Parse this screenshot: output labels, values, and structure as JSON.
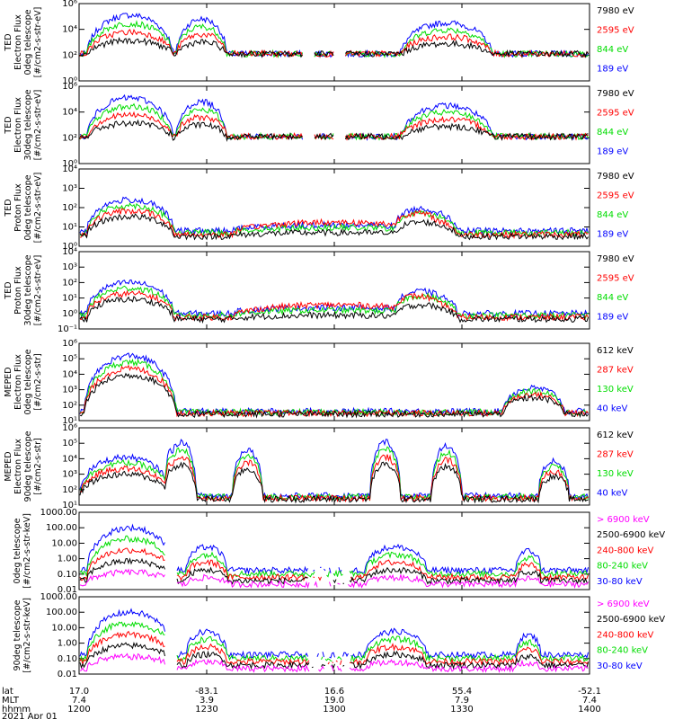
{
  "chart_data": [
    {
      "type": "line",
      "ylabel": [
        "TED",
        "Electron Flux",
        "0deg telescope",
        "[#/cm2-s-str-eV]"
      ],
      "y_ticks": [
        "10⁰",
        "10²",
        "10⁴",
        "10⁶"
      ],
      "ylim_log": [
        0,
        6
      ],
      "legend": [
        {
          "text": "7980 eV",
          "color": "#000000"
        },
        {
          "text": "2595 eV",
          "color": "#ff0000"
        },
        {
          "text": "844 eV",
          "color": "#00dd00"
        },
        {
          "text": "189 eV",
          "color": "#0000ff"
        }
      ],
      "profile": "ted_e0"
    },
    {
      "type": "line",
      "ylabel": [
        "TED",
        "Electron Flux",
        "30deg telescope",
        "[#/cm2-s-str-eV]"
      ],
      "y_ticks": [
        "10⁰",
        "10²",
        "10⁴",
        "10⁶"
      ],
      "ylim_log": [
        0,
        6
      ],
      "legend": [
        {
          "text": "7980 eV",
          "color": "#000000"
        },
        {
          "text": "2595 eV",
          "color": "#ff0000"
        },
        {
          "text": "844 eV",
          "color": "#00dd00"
        },
        {
          "text": "189 eV",
          "color": "#0000ff"
        }
      ],
      "profile": "ted_e30"
    },
    {
      "type": "line",
      "ylabel": [
        "TED",
        "Proton Flux",
        "0deg telescope",
        "[#/cm2-s-str-eV]"
      ],
      "y_ticks": [
        "10⁰",
        "10¹",
        "10²",
        "10³",
        "10⁴"
      ],
      "ylim_log": [
        -0.5,
        4.5
      ],
      "legend": [
        {
          "text": "7980 eV",
          "color": "#000000"
        },
        {
          "text": "2595 eV",
          "color": "#ff0000"
        },
        {
          "text": "844 eV",
          "color": "#00dd00"
        },
        {
          "text": "189 eV",
          "color": "#0000ff"
        }
      ],
      "profile": "ted_p0"
    },
    {
      "type": "line",
      "ylabel": [
        "TED",
        "Proton Flux",
        "30deg telescope",
        "[#/cm2-s-str-eV]"
      ],
      "y_ticks": [
        "10⁻¹",
        "10⁰",
        "10¹",
        "10²",
        "10³",
        "10⁴"
      ],
      "ylim_log": [
        -1,
        4
      ],
      "legend": [
        {
          "text": "7980 eV",
          "color": "#000000"
        },
        {
          "text": "2595 eV",
          "color": "#ff0000"
        },
        {
          "text": "844 eV",
          "color": "#00dd00"
        },
        {
          "text": "189 eV",
          "color": "#0000ff"
        }
      ],
      "profile": "ted_p30"
    },
    {
      "type": "line",
      "ylabel": [
        "MEPED",
        "Electron Flux",
        "0deg telescope",
        "[#/cm2-s-str]"
      ],
      "y_ticks": [
        "10¹",
        "10²",
        "10³",
        "10⁴",
        "10⁵",
        "10⁶"
      ],
      "ylim_log": [
        1,
        6
      ],
      "legend": [
        {
          "text": "612 keV",
          "color": "#000000"
        },
        {
          "text": "287 keV",
          "color": "#ff0000"
        },
        {
          "text": "130 keV",
          "color": "#00dd00"
        },
        {
          "text": "40 keV",
          "color": "#0000ff"
        }
      ],
      "profile": "mep_e0"
    },
    {
      "type": "line",
      "ylabel": [
        "MEPED",
        "Electron Flux",
        "90deg telescope",
        "[#/cm2-s-str]"
      ],
      "y_ticks": [
        "10¹",
        "10²",
        "10³",
        "10⁴",
        "10⁵",
        "10⁶"
      ],
      "ylim_log": [
        1,
        6
      ],
      "legend": [
        {
          "text": "612 keV",
          "color": "#000000"
        },
        {
          "text": "287 keV",
          "color": "#ff0000"
        },
        {
          "text": "130 keV",
          "color": "#00dd00"
        },
        {
          "text": "40 keV",
          "color": "#0000ff"
        }
      ],
      "profile": "mep_e90"
    },
    {
      "type": "line",
      "ylabel": [
        "0deg telescope",
        "[#/cm2-s-str-keV]"
      ],
      "y_ticks": [
        "0.01",
        "0.10",
        "1.00",
        "10.00",
        "100.00",
        "1000.00"
      ],
      "ylim_log": [
        -2,
        3
      ],
      "legend": [
        {
          "text": "> 6900 keV",
          "color": "#ff00ff"
        },
        {
          "text": "2500-6900 keV",
          "color": "#000000"
        },
        {
          "text": "240-800 keV",
          "color": "#ff0000"
        },
        {
          "text": "80-240 keV",
          "color": "#00dd00"
        },
        {
          "text": "30-80 keV",
          "color": "#0000ff"
        }
      ],
      "profile": "mep_p0"
    },
    {
      "type": "line",
      "ylabel": [
        "90deg telescope",
        "[#/cm2-s-str-keV]"
      ],
      "y_ticks": [
        "0.01",
        "0.10",
        "1.00",
        "10.00",
        "100.00",
        "1000.00"
      ],
      "ylim_log": [
        -2,
        3
      ],
      "legend": [
        {
          "text": "> 6900 keV",
          "color": "#ff00ff"
        },
        {
          "text": "2500-6900 keV",
          "color": "#000000"
        },
        {
          "text": "240-800 keV",
          "color": "#ff0000"
        },
        {
          "text": "80-240 keV",
          "color": "#00dd00"
        },
        {
          "text": "30-80 keV",
          "color": "#0000ff"
        }
      ],
      "profile": "mep_p90"
    }
  ],
  "x_axis": {
    "row_labels": [
      "lat",
      "MLT",
      "hhmm"
    ],
    "ticks": [
      {
        "lat": "17.0",
        "mlt": "7.4",
        "hhmm": "1200"
      },
      {
        "lat": "-83.1",
        "mlt": "3.9",
        "hhmm": "1230"
      },
      {
        "lat": "16.6",
        "mlt": "19.0",
        "hhmm": "1300"
      },
      {
        "lat": "55.4",
        "mlt": "7.9",
        "hhmm": "1330"
      },
      {
        "lat": "-52.1",
        "mlt": "7.4",
        "hhmm": "1400"
      }
    ],
    "date": "2021 Apr 01"
  }
}
